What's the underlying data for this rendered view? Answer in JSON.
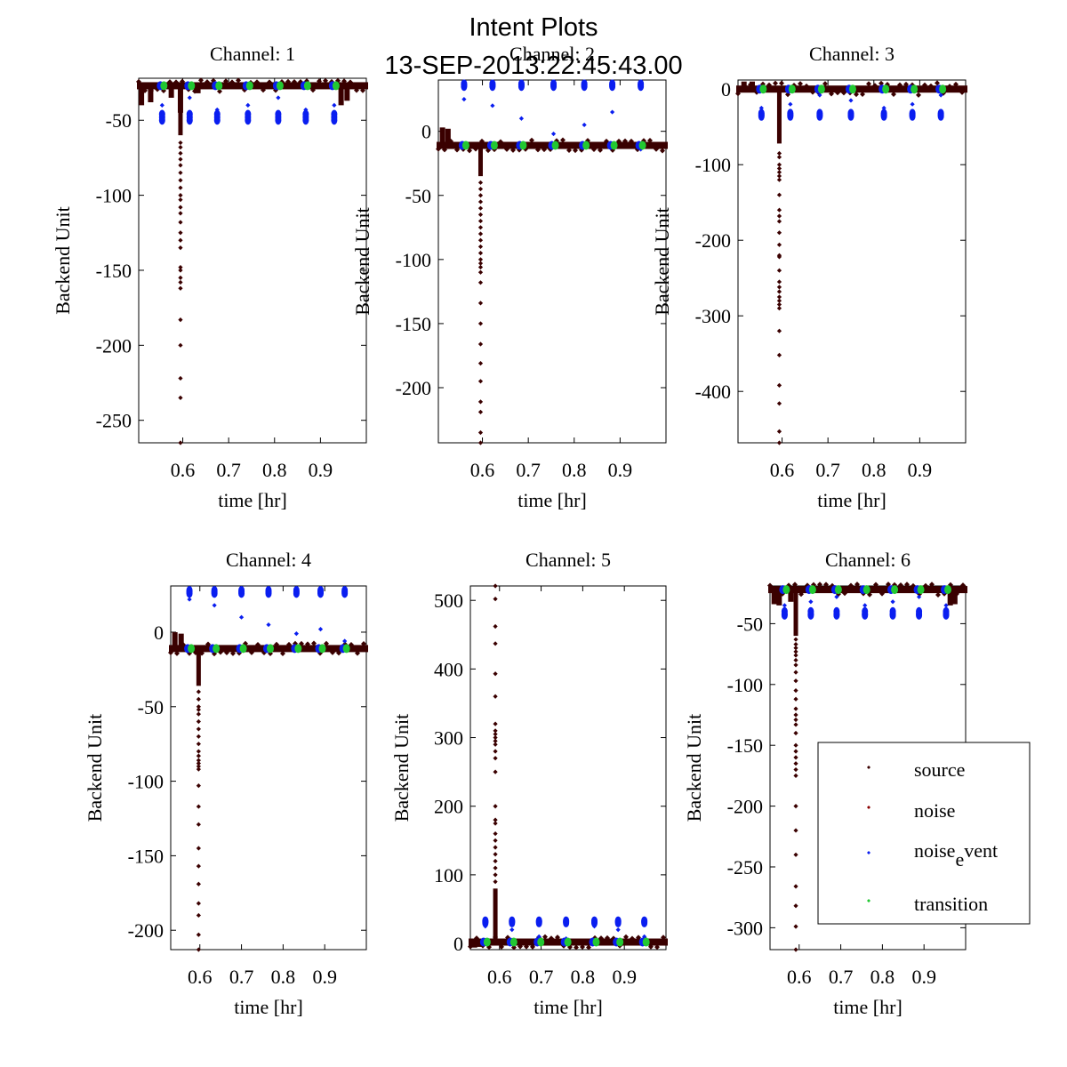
{
  "figure": {
    "title_line1": "Intent Plots",
    "title_line2": "13-SEP-2013:22:45:43.00"
  },
  "colors": {
    "source": "#3a0000",
    "noise": "#8b0000",
    "noise_event": "#0a1ef0",
    "transition": "#22c832",
    "axes": "#000000"
  },
  "legend": {
    "placement": "lower-right of Channel 6",
    "entries": [
      {
        "key": "source",
        "label": "source"
      },
      {
        "key": "noise",
        "label": "noise"
      },
      {
        "key": "noise_event",
        "label_main": "noise",
        "label_sub": "e",
        "label_sup": "vent"
      },
      {
        "key": "transition",
        "label": "transition"
      }
    ]
  },
  "chart_data": [
    {
      "type": "scatter",
      "title": "Channel: 1",
      "xlabel": "time [hr]",
      "ylabel": "Backend Unit",
      "xlim": [
        0.504,
        1.0
      ],
      "ylim": [
        -265,
        -22
      ],
      "xticks": [
        0.6,
        0.7,
        0.8,
        0.9
      ],
      "xtick_labels": [
        "0.6",
        "0.7",
        "0.8",
        "0.9"
      ],
      "yticks": [
        -50,
        -100,
        -150,
        -200,
        -250
      ],
      "ytick_labels": [
        "-50",
        "-100",
        "-150",
        "-200",
        "-250"
      ],
      "baseline": -27,
      "baseline_jitter": 3,
      "dropouts": [
        [
          0.51,
          -40
        ],
        [
          0.53,
          -38
        ],
        [
          0.575,
          -35
        ],
        [
          0.595,
          -45
        ],
        [
          0.633,
          -32
        ],
        [
          0.945,
          -40
        ],
        [
          0.958,
          -37
        ]
      ],
      "spike": {
        "x": 0.595,
        "dense_to": -60,
        "points": [
          -65,
          -68,
          -72,
          -76,
          -80,
          -85,
          -90,
          -95,
          -100,
          -103,
          -108,
          -112,
          -118,
          -125,
          -130,
          -135,
          -148,
          -150,
          -155,
          -158,
          -162,
          -183,
          -200,
          -222,
          -235,
          -265
        ]
      },
      "events_x": [
        0.555,
        0.615,
        0.675,
        0.742,
        0.808,
        0.868,
        0.93
      ],
      "noise_event_clusters": [
        -46,
        -48,
        -50
      ],
      "noise_event_sparse": [
        -40,
        -35,
        -43
      ],
      "transition_y": -27
    },
    {
      "type": "scatter",
      "title": "Channel: 2",
      "xlabel": "time [hr]",
      "ylabel": "Backend Unit",
      "xlim": [
        0.504,
        1.0
      ],
      "ylim": [
        -243,
        40
      ],
      "xticks": [
        0.6,
        0.7,
        0.8,
        0.9
      ],
      "xtick_labels": [
        "0.6",
        "0.7",
        "0.8",
        "0.9"
      ],
      "yticks": [
        0,
        -50,
        -100,
        -150,
        -200
      ],
      "ytick_labels": [
        "0",
        "-50",
        "-100",
        "-150",
        "-200"
      ],
      "baseline": -11,
      "baseline_jitter": 2,
      "dropouts": [
        [
          0.513,
          3
        ],
        [
          0.525,
          2
        ]
      ],
      "spike": {
        "x": 0.596,
        "dense_to": -35,
        "points": [
          -40,
          -45,
          -50,
          -55,
          -60,
          -65,
          -70,
          -75,
          -80,
          -85,
          -90,
          -95,
          -100,
          -103,
          -106,
          -110,
          -118,
          -134,
          -150,
          -166,
          -181,
          -195,
          -211,
          -219,
          -235,
          -243
        ]
      },
      "events_x": [
        0.56,
        0.622,
        0.685,
        0.755,
        0.822,
        0.883,
        0.945
      ],
      "noise_event_clusters": [
        35,
        36,
        37
      ],
      "noise_event_sparse": [
        25,
        20,
        10,
        -2,
        5,
        15,
        -14,
        -6
      ],
      "transition_y": -11
    },
    {
      "type": "scatter",
      "title": "Channel: 3",
      "xlabel": "time [hr]",
      "ylabel": "Backend Unit",
      "xlim": [
        0.504,
        1.0
      ],
      "ylim": [
        -468,
        12
      ],
      "xticks": [
        0.6,
        0.7,
        0.8,
        0.9
      ],
      "xtick_labels": [
        "0.6",
        "0.7",
        "0.8",
        "0.9"
      ],
      "yticks": [
        0,
        -100,
        -200,
        -300,
        -400
      ],
      "ytick_labels": [
        "0",
        "-100",
        "-200",
        "-300",
        "-400"
      ],
      "baseline": 0,
      "baseline_jitter": 4,
      "dropouts": [
        [
          0.517,
          10
        ],
        [
          0.535,
          10
        ]
      ],
      "spike": {
        "x": 0.594,
        "dense_to": -72,
        "points": [
          -85,
          -90,
          -100,
          -105,
          -110,
          -115,
          -120,
          -140,
          -160,
          -168,
          -175,
          -190,
          -206,
          -220,
          -222,
          -240,
          -255,
          -262,
          -268,
          -275,
          -280,
          -285,
          -290,
          -320,
          -352,
          -392,
          -416,
          -453,
          -468
        ]
      },
      "events_x": [
        0.555,
        0.618,
        0.682,
        0.75,
        0.822,
        0.884,
        0.946
      ],
      "noise_event_clusters": [
        -32,
        -34,
        -36
      ],
      "noise_event_sparse": [
        -25,
        -20,
        -8,
        -15
      ],
      "transition_y": 0
    },
    {
      "type": "scatter",
      "title": "Channel: 4",
      "xlabel": "time [hr]",
      "ylabel": "Backend Unit",
      "xlim": [
        0.53,
        1.0
      ],
      "ylim": [
        -213,
        31
      ],
      "xticks": [
        0.6,
        0.7,
        0.8,
        0.9
      ],
      "xtick_labels": [
        "0.6",
        "0.7",
        "0.8",
        "0.9"
      ],
      "yticks": [
        0,
        -50,
        -100,
        -150,
        -200
      ],
      "ytick_labels": [
        "0",
        "-50",
        "-100",
        "-150",
        "-200"
      ],
      "baseline": -11,
      "baseline_jitter": 2,
      "dropouts": [
        [
          0.54,
          0
        ],
        [
          0.555,
          -1
        ]
      ],
      "spike": {
        "x": 0.597,
        "dense_to": -36,
        "points": [
          -40,
          -45,
          -50,
          -52,
          -55,
          -60,
          -65,
          -70,
          -75,
          -80,
          -83,
          -86,
          -88,
          -90,
          -92,
          -103,
          -117,
          -129,
          -145,
          -157,
          -169,
          -182,
          -190,
          -203,
          -213
        ]
      },
      "events_x": [
        0.575,
        0.635,
        0.7,
        0.765,
        0.832,
        0.89,
        0.948
      ],
      "noise_event_clusters": [
        26,
        27,
        28
      ],
      "noise_event_sparse": [
        22,
        18,
        10,
        5,
        -1,
        2,
        -6,
        -17
      ],
      "transition_y": -11
    },
    {
      "type": "scatter",
      "title": "Channel: 5",
      "xlabel": "time [hr]",
      "ylabel": "Backend Unit",
      "xlim": [
        0.53,
        1.0
      ],
      "ylim": [
        -9,
        521
      ],
      "xticks": [
        0.6,
        0.7,
        0.8,
        0.9
      ],
      "xtick_labels": [
        "0.6",
        "0.7",
        "0.8",
        "0.9"
      ],
      "yticks": [
        0,
        100,
        200,
        300,
        400,
        500
      ],
      "ytick_labels": [
        "0",
        "100",
        "200",
        "300",
        "400",
        "500"
      ],
      "baseline": 2,
      "baseline_jitter": 2,
      "dropouts": [
        [
          0.54,
          -6
        ],
        [
          0.55,
          -5
        ]
      ],
      "spike": {
        "x": 0.59,
        "dense_to": 80,
        "points": [
          90,
          100,
          110,
          120,
          130,
          140,
          150,
          160,
          175,
          180,
          200,
          250,
          270,
          280,
          290,
          295,
          300,
          305,
          310,
          320,
          360,
          393,
          437,
          462,
          502,
          521
        ]
      },
      "events_x": [
        0.566,
        0.63,
        0.695,
        0.76,
        0.828,
        0.885,
        0.948
      ],
      "noise_event_clusters": [
        30,
        32,
        33
      ],
      "noise_event_sparse": [
        25,
        20,
        10,
        7
      ],
      "transition_y": 2
    },
    {
      "type": "scatter",
      "title": "Channel: 6",
      "xlabel": "time [hr]",
      "ylabel": "Backend Unit",
      "xlim": [
        0.53,
        1.0
      ],
      "ylim": [
        -318,
        -19
      ],
      "xticks": [
        0.6,
        0.7,
        0.8,
        0.9
      ],
      "xtick_labels": [
        "0.6",
        "0.7",
        "0.8",
        "0.9"
      ],
      "yticks": [
        -50,
        -100,
        -150,
        -200,
        -250,
        -300
      ],
      "ytick_labels": [
        "-50",
        "-100",
        "-150",
        "-200",
        "-250",
        "-300"
      ],
      "baseline": -22,
      "baseline_jitter": 2,
      "dropouts": [
        [
          0.54,
          -34
        ],
        [
          0.552,
          -35
        ],
        [
          0.58,
          -32
        ],
        [
          0.963,
          -35
        ],
        [
          0.974,
          -34
        ]
      ],
      "spike": {
        "x": 0.592,
        "dense_to": -60,
        "points": [
          -63,
          -67,
          -70,
          -73,
          -76,
          -80,
          -84,
          -90,
          -97,
          -105,
          -112,
          -120,
          -125,
          -129,
          -133,
          -140,
          -150,
          -155,
          -160,
          -165,
          -170,
          -175,
          -200,
          -220,
          -240,
          -266,
          -282,
          -299,
          -318
        ]
      },
      "events_x": [
        0.565,
        0.628,
        0.69,
        0.758,
        0.825,
        0.888,
        0.953
      ],
      "noise_event_clusters": [
        -40,
        -42,
        -43
      ],
      "noise_event_sparse": [
        -35,
        -32,
        -28
      ],
      "transition_y": -22
    }
  ]
}
